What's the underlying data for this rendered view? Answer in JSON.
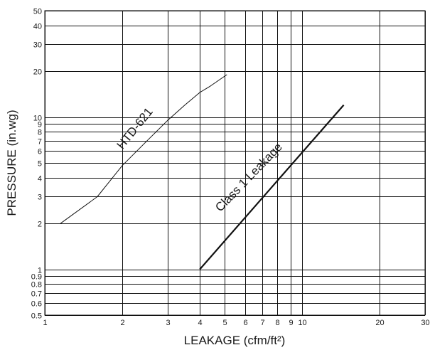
{
  "chart_data": {
    "type": "line",
    "title": "",
    "xlabel": "LEAKAGE (cfm/ft²)",
    "ylabel": "PRESSURE (in.wg)",
    "xscale": "log",
    "yscale": "log",
    "xlim": [
      1,
      30
    ],
    "ylim": [
      0.5,
      50
    ],
    "grid": true,
    "x_ticks": [
      1,
      2,
      3,
      4,
      5,
      6,
      7,
      8,
      9,
      10,
      20,
      30
    ],
    "x_tick_labels": [
      "1",
      "2",
      "3",
      "4",
      "5",
      "6",
      "7",
      "8",
      "9",
      "10",
      "20",
      "30"
    ],
    "y_ticks": [
      0.5,
      0.6,
      0.7,
      0.8,
      0.9,
      1,
      2,
      3,
      4,
      5,
      6,
      7,
      8,
      9,
      10,
      20,
      30,
      40,
      50
    ],
    "y_tick_labels": [
      "0.5",
      "0.6",
      "0.7",
      "0.8",
      "0.9",
      "1",
      "2",
      "3",
      "4",
      "5",
      "6",
      "7",
      "8",
      "9",
      "10",
      "20",
      "30",
      "40",
      "50"
    ],
    "series": [
      {
        "name": "HTD-621",
        "color": "#111111",
        "line_style": "thin",
        "points": [
          [
            1.15,
            2
          ],
          [
            1.6,
            3
          ],
          [
            2.0,
            4.8
          ],
          [
            2.5,
            7
          ],
          [
            3.0,
            9.5
          ],
          [
            3.5,
            12
          ],
          [
            4.0,
            14.5
          ],
          [
            4.4,
            16
          ],
          [
            5.1,
            19
          ]
        ]
      },
      {
        "name": "Class 1 Leakage",
        "color": "#111111",
        "line_style": "bold",
        "points": [
          [
            4.0,
            1.0
          ],
          [
            14.5,
            12
          ]
        ]
      }
    ]
  }
}
